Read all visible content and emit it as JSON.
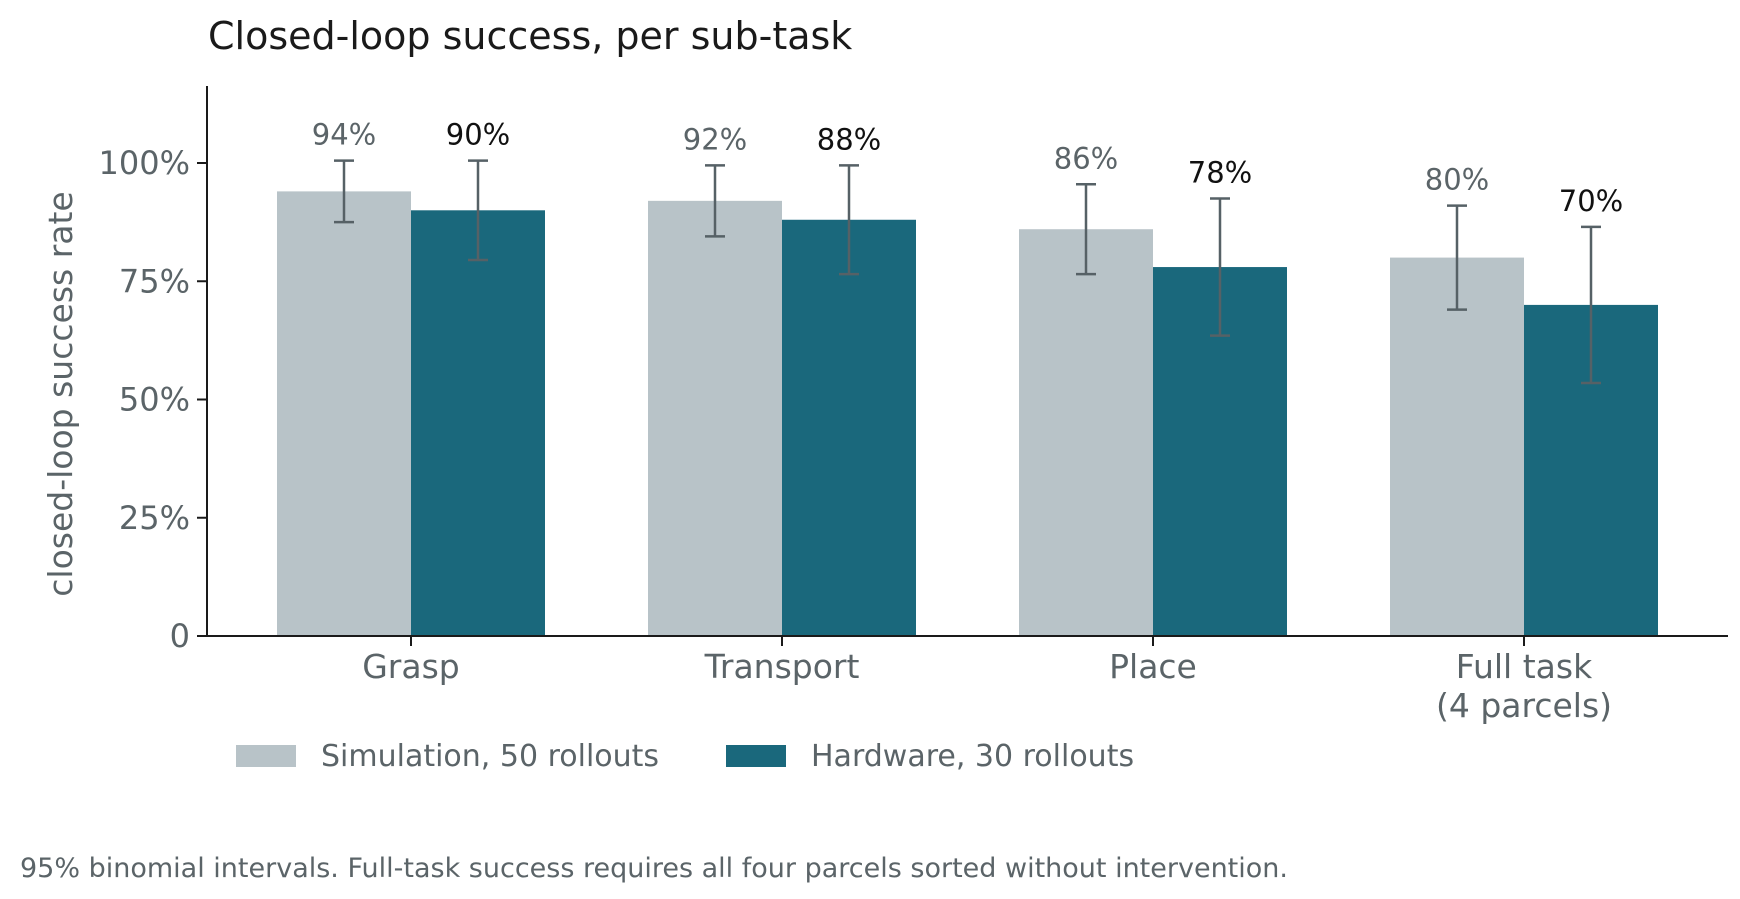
{
  "chart_data": {
    "type": "bar",
    "title": "Closed-loop success, per sub-task",
    "ylabel": "closed-loop success rate",
    "xlabel": "",
    "ylim": [
      0,
      1.16
    ],
    "yticks": [
      {
        "value": 0,
        "label": "0"
      },
      {
        "value": 0.25,
        "label": "25%"
      },
      {
        "value": 0.5,
        "label": "50%"
      },
      {
        "value": 0.75,
        "label": "75%"
      },
      {
        "value": 1.0,
        "label": "100%"
      }
    ],
    "categories": [
      {
        "lines": [
          "Grasp"
        ]
      },
      {
        "lines": [
          "Transport"
        ]
      },
      {
        "lines": [
          "Place"
        ]
      },
      {
        "lines": [
          "Full task",
          "(4 parcels)"
        ]
      }
    ],
    "series": [
      {
        "name": "Simulation, 50 rollouts",
        "color": "#b8c3c8",
        "label_color": "#5b6468",
        "values": [
          0.94,
          0.92,
          0.86,
          0.8
        ],
        "labels": [
          "94%",
          "92%",
          "86%",
          "80%"
        ],
        "ci_low": [
          0.875,
          0.845,
          0.765,
          0.69
        ],
        "ci_high": [
          1.005,
          0.995,
          0.955,
          0.91
        ]
      },
      {
        "name": "Hardware, 30 rollouts",
        "color": "#1a687c",
        "label_color": "#111111",
        "values": [
          0.9,
          0.88,
          0.78,
          0.7
        ],
        "labels": [
          "90%",
          "88%",
          "78%",
          "70%"
        ],
        "ci_low": [
          0.795,
          0.765,
          0.635,
          0.535
        ],
        "ci_high": [
          1.005,
          0.995,
          0.925,
          0.865
        ]
      }
    ],
    "error_bar_color": "#566166",
    "legend_position": "bottom-left",
    "grid": false,
    "footnote": "95% binomial intervals. Full-task success requires all four parcels sorted without intervention."
  }
}
